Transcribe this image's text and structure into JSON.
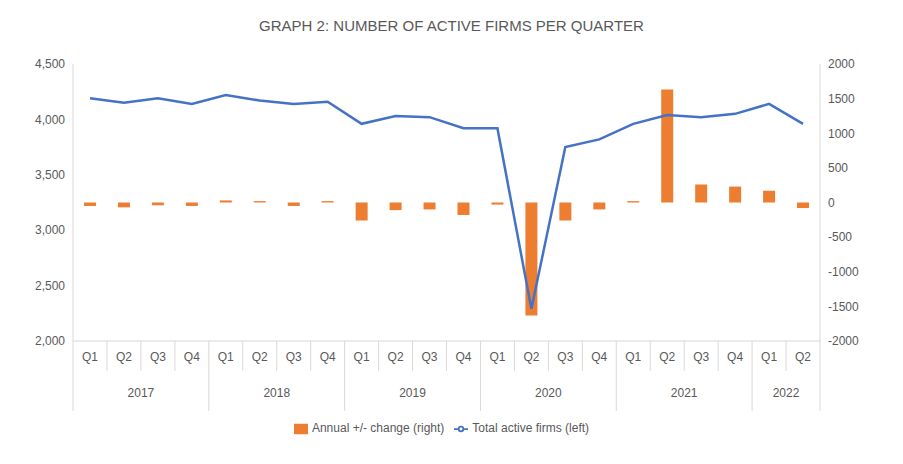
{
  "chart_data": {
    "type": "combo",
    "title": "GRAPH 2: NUMBER OF ACTIVE FIRMS PER QUARTER",
    "categories": [
      "Q1",
      "Q2",
      "Q3",
      "Q4",
      "Q1",
      "Q2",
      "Q3",
      "Q4",
      "Q1",
      "Q2",
      "Q3",
      "Q4",
      "Q1",
      "Q2",
      "Q3",
      "Q4",
      "Q1",
      "Q2",
      "Q3",
      "Q4",
      "Q1",
      "Q2"
    ],
    "groups": [
      "2017",
      "2017",
      "2017",
      "2017",
      "2018",
      "2018",
      "2018",
      "2018",
      "2019",
      "2019",
      "2019",
      "2019",
      "2020",
      "2020",
      "2020",
      "2020",
      "2021",
      "2021",
      "2021",
      "2021",
      "2022",
      "2022"
    ],
    "series": [
      {
        "name": "Annual +/- change (right)",
        "type": "bar",
        "color": "#ED7D31",
        "axis": "y2",
        "values": [
          -50,
          -70,
          -40,
          -50,
          30,
          20,
          -50,
          20,
          -260,
          -110,
          -100,
          -180,
          -30,
          -1630,
          -260,
          -100,
          20,
          1630,
          260,
          230,
          170,
          -80
        ]
      },
      {
        "name": "Total active firms (left)",
        "type": "line",
        "color": "#4472C4",
        "values": [
          4190,
          4150,
          4190,
          4140,
          4220,
          4170,
          4140,
          4160,
          3960,
          4030,
          4020,
          3920,
          3920,
          2290,
          3750,
          3820,
          3960,
          4040,
          4020,
          4050,
          4140,
          3960
        ]
      }
    ],
    "ylim": [
      2000,
      4500
    ],
    "yticks": [
      {
        "value": 2000,
        "label": "2,000"
      },
      {
        "value": 2500,
        "label": "2,500"
      },
      {
        "value": 3000,
        "label": "3,000"
      },
      {
        "value": 3500,
        "label": "3,500"
      },
      {
        "value": 4000,
        "label": "4,000"
      },
      {
        "value": 4500,
        "label": "4,500"
      }
    ],
    "y2lim": [
      -2000,
      2000
    ],
    "y2ticks": [
      -2000,
      -1500,
      -1000,
      -500,
      0,
      500,
      1000,
      1500,
      2000
    ],
    "legend": "bottom",
    "grid": false
  }
}
